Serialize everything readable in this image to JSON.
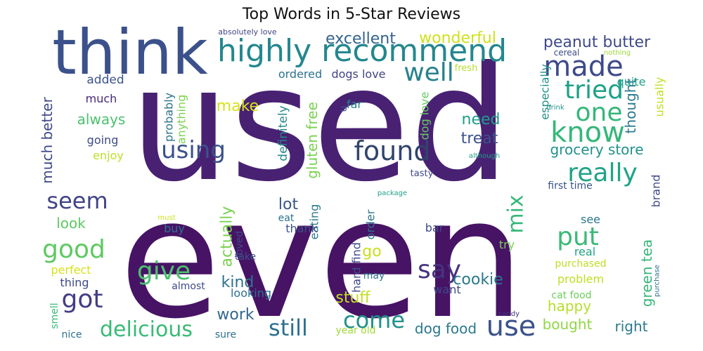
{
  "chart_data": {
    "type": "word_cloud",
    "title": "Top Words in 5-Star Reviews",
    "colormap": "viridis",
    "words": [
      {
        "text": "used",
        "rank": 1,
        "orientation": "horizontal",
        "color": "#482173"
      },
      {
        "text": "even",
        "rank": 2,
        "orientation": "horizontal",
        "color": "#471365"
      },
      {
        "text": "think",
        "rank": 3,
        "orientation": "horizontal",
        "color": "#3b518b"
      },
      {
        "text": "highly recommend",
        "rank": 4,
        "orientation": "horizontal",
        "color": "#24878e"
      },
      {
        "text": "made",
        "rank": 5,
        "orientation": "horizontal",
        "color": "#3e4a89"
      },
      {
        "text": "well",
        "rank": 6,
        "orientation": "horizontal",
        "color": "#26828e"
      },
      {
        "text": "tried",
        "rank": 7,
        "orientation": "horizontal",
        "color": "#1fa088"
      },
      {
        "text": "one",
        "rank": 8,
        "orientation": "horizontal",
        "color": "#35b779"
      },
      {
        "text": "know",
        "rank": 9,
        "orientation": "horizontal",
        "color": "#35b779"
      },
      {
        "text": "found",
        "rank": 10,
        "orientation": "horizontal",
        "color": "#31446b"
      },
      {
        "text": "really",
        "rank": 11,
        "orientation": "horizontal",
        "color": "#20a386"
      },
      {
        "text": "using",
        "rank": 12,
        "orientation": "horizontal",
        "color": "#3b528b"
      },
      {
        "text": "seem",
        "rank": 13,
        "orientation": "horizontal",
        "color": "#414487"
      },
      {
        "text": "good",
        "rank": 14,
        "orientation": "horizontal",
        "color": "#5ec962"
      },
      {
        "text": "give",
        "rank": 15,
        "orientation": "horizontal",
        "color": "#4ac16d"
      },
      {
        "text": "got",
        "rank": 16,
        "orientation": "horizontal",
        "color": "#433e85"
      },
      {
        "text": "say",
        "rank": 17,
        "orientation": "horizontal",
        "color": "#46337e"
      },
      {
        "text": "put",
        "rank": 18,
        "orientation": "horizontal",
        "color": "#3aba76"
      },
      {
        "text": "use",
        "rank": 19,
        "orientation": "horizontal",
        "color": "#3b528b"
      },
      {
        "text": "delicious",
        "rank": 20,
        "orientation": "horizontal",
        "color": "#3aba76"
      },
      {
        "text": "still",
        "rank": 21,
        "orientation": "horizontal",
        "color": "#2c728e"
      },
      {
        "text": "come",
        "rank": 22,
        "orientation": "horizontal",
        "color": "#21918c"
      },
      {
        "text": "mix",
        "rank": 23,
        "orientation": "vertical",
        "color": "#35b779"
      },
      {
        "text": "excellent",
        "rank": 24,
        "orientation": "horizontal",
        "color": "#33638d"
      },
      {
        "text": "wonderful",
        "rank": 25,
        "orientation": "horizontal",
        "color": "#d0e11c"
      },
      {
        "text": "peanut butter",
        "rank": 26,
        "orientation": "horizontal",
        "color": "#3e4989"
      },
      {
        "text": "thought",
        "rank": 27,
        "orientation": "vertical",
        "color": "#2a788e"
      },
      {
        "text": "grocery store",
        "rank": 28,
        "orientation": "horizontal",
        "color": "#21918c"
      },
      {
        "text": "cookie",
        "rank": 29,
        "orientation": "horizontal",
        "color": "#2a788e"
      },
      {
        "text": "need",
        "rank": 30,
        "orientation": "horizontal",
        "color": "#1f9e89"
      },
      {
        "text": "treat",
        "rank": 31,
        "orientation": "horizontal",
        "color": "#3b528b"
      },
      {
        "text": "green tea",
        "rank": 32,
        "orientation": "vertical",
        "color": "#35b779"
      },
      {
        "text": "happy",
        "rank": 33,
        "orientation": "horizontal",
        "color": "#b5de2b"
      },
      {
        "text": "gluten free",
        "rank": 34,
        "orientation": "vertical",
        "color": "#7ad151"
      },
      {
        "text": "much better",
        "rank": 35,
        "orientation": "vertical",
        "color": "#3e4a89"
      },
      {
        "text": "make",
        "rank": 36,
        "orientation": "horizontal",
        "color": "#d8e219"
      },
      {
        "text": "always",
        "rank": 37,
        "orientation": "horizontal",
        "color": "#4ac16d"
      },
      {
        "text": "lot",
        "rank": 38,
        "orientation": "horizontal",
        "color": "#39568c"
      },
      {
        "text": "kind",
        "rank": 39,
        "orientation": "horizontal",
        "color": "#2c728e"
      },
      {
        "text": "work",
        "rank": 40,
        "orientation": "horizontal",
        "color": "#31688e"
      },
      {
        "text": "stuff",
        "rank": 41,
        "orientation": "horizontal",
        "color": "#c2df23"
      },
      {
        "text": "dog food",
        "rank": 42,
        "orientation": "horizontal",
        "color": "#2a788e"
      },
      {
        "text": "bought",
        "rank": 43,
        "orientation": "horizontal",
        "color": "#90d743"
      },
      {
        "text": "right",
        "rank": 44,
        "orientation": "horizontal",
        "color": "#2a788e"
      },
      {
        "text": "actually",
        "rank": 45,
        "orientation": "vertical",
        "color": "#7ad151"
      },
      {
        "text": "go",
        "rank": 46,
        "orientation": "horizontal",
        "color": "#c8e020"
      },
      {
        "text": "look",
        "rank": 47,
        "orientation": "horizontal",
        "color": "#5ec962"
      },
      {
        "text": "especially",
        "rank": 48,
        "orientation": "vertical",
        "color": "#21918c"
      },
      {
        "text": "quite",
        "rank": 49,
        "orientation": "horizontal",
        "color": "#1f9e89"
      },
      {
        "text": "usually",
        "rank": 50,
        "orientation": "vertical",
        "color": "#c2df23"
      },
      {
        "text": "definitely",
        "rank": 51,
        "orientation": "vertical",
        "color": "#24878e"
      },
      {
        "text": "dog love",
        "rank": 52,
        "orientation": "vertical",
        "color": "#65cb5e"
      },
      {
        "text": "ordered",
        "rank": 53,
        "orientation": "horizontal",
        "color": "#2c728e"
      },
      {
        "text": "dogs love",
        "rank": 54,
        "orientation": "horizontal",
        "color": "#414487"
      },
      {
        "text": "added",
        "rank": 55,
        "orientation": "horizontal",
        "color": "#3b528b"
      },
      {
        "text": "much",
        "rank": 56,
        "orientation": "horizontal",
        "color": "#482878"
      },
      {
        "text": "going",
        "rank": 57,
        "orientation": "horizontal",
        "color": "#3e4989"
      },
      {
        "text": "enjoy",
        "rank": 58,
        "orientation": "horizontal",
        "color": "#bddf26"
      },
      {
        "text": "probably",
        "rank": 59,
        "orientation": "vertical",
        "color": "#2c728e"
      },
      {
        "text": "anything",
        "rank": 60,
        "orientation": "vertical",
        "color": "#7ad151"
      },
      {
        "text": "far",
        "rank": 61,
        "orientation": "horizontal",
        "color": "#26828e"
      },
      {
        "text": "u",
        "rank": 62,
        "orientation": "vertical",
        "color": "#3b528b"
      },
      {
        "text": "fresh",
        "rank": 63,
        "orientation": "horizontal",
        "color": "#b5de2b"
      },
      {
        "text": "cereal",
        "rank": 64,
        "orientation": "horizontal",
        "color": "#3e4a89"
      },
      {
        "text": "nothing",
        "rank": 65,
        "orientation": "horizontal",
        "color": "#a0da39"
      },
      {
        "text": "absolutely love",
        "rank": 66,
        "orientation": "horizontal",
        "color": "#414487"
      },
      {
        "text": "tasty",
        "rank": 67,
        "orientation": "horizontal",
        "color": "#3e4989"
      },
      {
        "text": "eating",
        "rank": 68,
        "orientation": "vertical",
        "color": "#2a788e"
      },
      {
        "text": "first time",
        "rank": 69,
        "orientation": "horizontal",
        "color": "#3b528b"
      },
      {
        "text": "brand",
        "rank": 70,
        "orientation": "vertical",
        "color": "#3e4a89"
      },
      {
        "text": "package",
        "rank": 71,
        "orientation": "horizontal",
        "color": "#20a386"
      },
      {
        "text": "drink",
        "rank": 72,
        "orientation": "horizontal",
        "color": "#21918c"
      },
      {
        "text": "although",
        "rank": 73,
        "orientation": "horizontal",
        "color": "#1fa088"
      },
      {
        "text": "eat",
        "rank": 74,
        "orientation": "horizontal",
        "color": "#2c728e"
      },
      {
        "text": "thank",
        "rank": 75,
        "orientation": "horizontal",
        "color": "#3b528b"
      },
      {
        "text": "order",
        "rank": 76,
        "orientation": "vertical",
        "color": "#2c728e"
      },
      {
        "text": "bar",
        "rank": 77,
        "orientation": "horizontal",
        "color": "#3e4a89"
      },
      {
        "text": "see",
        "rank": 78,
        "orientation": "horizontal",
        "color": "#2a788e"
      },
      {
        "text": "try",
        "rank": 79,
        "orientation": "horizontal",
        "color": "#7ad151"
      },
      {
        "text": "real",
        "rank": 80,
        "orientation": "horizontal",
        "color": "#20a386"
      },
      {
        "text": "purchased",
        "rank": 81,
        "orientation": "horizontal",
        "color": "#bddf26"
      },
      {
        "text": "purchase",
        "rank": 82,
        "orientation": "vertical",
        "color": "#2c728e"
      },
      {
        "text": "problem",
        "rank": 83,
        "orientation": "horizontal",
        "color": "#c2df23"
      },
      {
        "text": "cat food",
        "rank": 84,
        "orientation": "horizontal",
        "color": "#6ccd5a"
      },
      {
        "text": "loved",
        "rank": 85,
        "orientation": "vertical",
        "color": "#3e4a89"
      },
      {
        "text": "take",
        "rank": 86,
        "orientation": "horizontal",
        "color": "#3b528b"
      },
      {
        "text": "buy",
        "rank": 87,
        "orientation": "horizontal",
        "color": "#2c728e"
      },
      {
        "text": "must",
        "rank": 88,
        "orientation": "horizontal",
        "color": "#d0e11c"
      },
      {
        "text": "hard find",
        "rank": 89,
        "orientation": "vertical",
        "color": "#3e4a89"
      },
      {
        "text": "may",
        "rank": 90,
        "orientation": "horizontal",
        "color": "#2c728e"
      },
      {
        "text": "want",
        "rank": 91,
        "orientation": "horizontal",
        "color": "#3e4a89"
      },
      {
        "text": "perfect",
        "rank": 92,
        "orientation": "horizontal",
        "color": "#d8e219"
      },
      {
        "text": "thing",
        "rank": 93,
        "orientation": "horizontal",
        "color": "#3e4a89"
      },
      {
        "text": "almost",
        "rank": 94,
        "orientation": "horizontal",
        "color": "#3e4a89"
      },
      {
        "text": "looking",
        "rank": 95,
        "orientation": "horizontal",
        "color": "#2c728e"
      },
      {
        "text": "smell",
        "rank": 96,
        "orientation": "vertical",
        "color": "#3aba76"
      },
      {
        "text": "nice",
        "rank": 97,
        "orientation": "horizontal",
        "color": "#2c728e"
      },
      {
        "text": "sure",
        "rank": 98,
        "orientation": "horizontal",
        "color": "#2c728e"
      },
      {
        "text": "year old",
        "rank": 99,
        "orientation": "horizontal",
        "color": "#a0da39"
      },
      {
        "text": "candy",
        "rank": 100,
        "orientation": "horizontal",
        "color": "#46337e"
      }
    ]
  }
}
